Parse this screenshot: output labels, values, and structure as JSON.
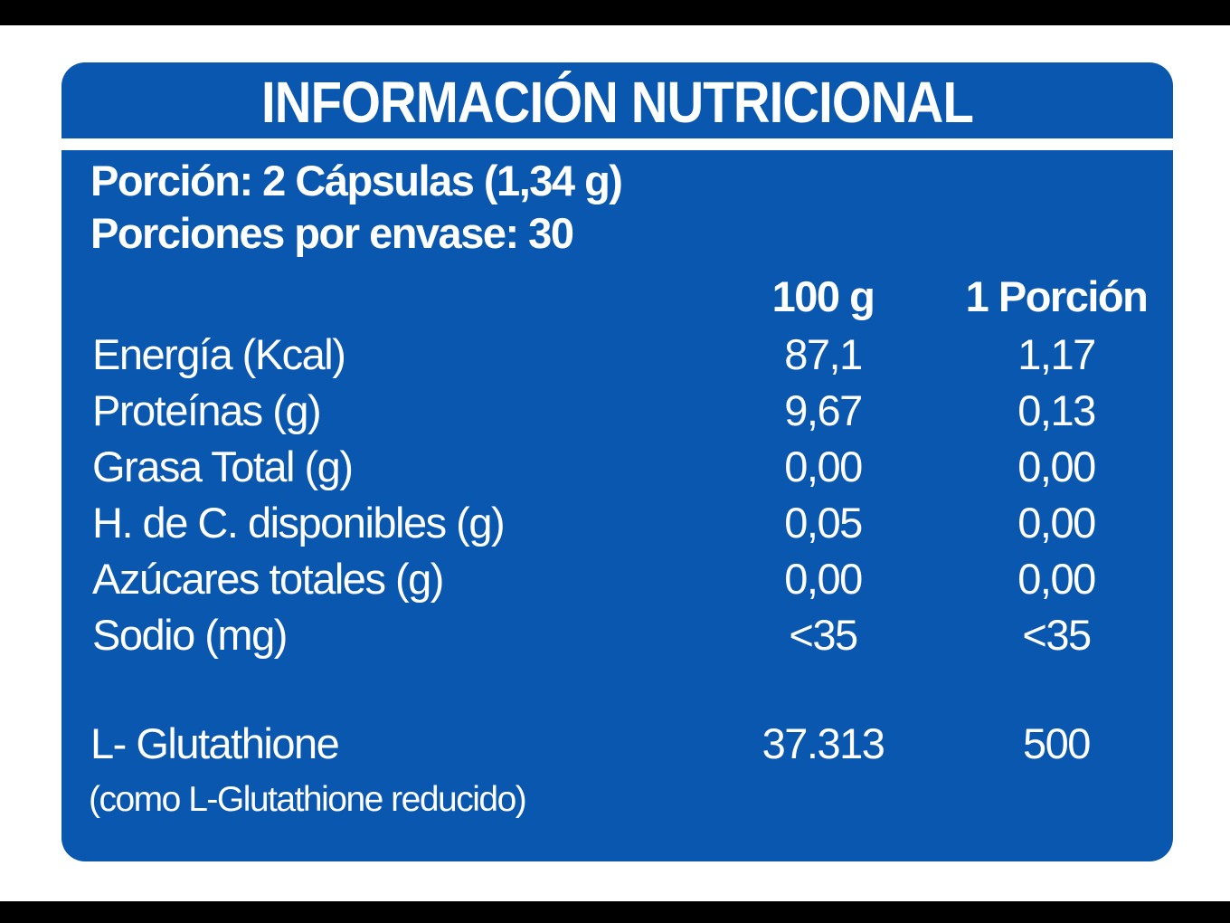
{
  "label": {
    "title": "INFORMACIÓN NUTRICIONAL",
    "serving": {
      "portion_line": "Porción: 2 Cápsulas (1,34 g)",
      "servings_per_container_line": "Porciones por envase: 30"
    },
    "columns": {
      "per_100g": "100 g",
      "per_portion": "1 Porción"
    },
    "rows": [
      {
        "name": "Energía (Kcal)",
        "per100": "87,1",
        "perPortion": "1,17"
      },
      {
        "name": "Proteínas (g)",
        "per100": "9,67",
        "perPortion": "0,13"
      },
      {
        "name": "Grasa Total (g)",
        "per100": "0,00",
        "perPortion": "0,00"
      },
      {
        "name": "H. de C. disponibles (g)",
        "per100": "0,05",
        "perPortion": "0,00"
      },
      {
        "name": "Azúcares totales (g)",
        "per100": "0,00",
        "perPortion": "0,00"
      },
      {
        "name": "Sodio (mg)",
        "per100": "<35",
        "perPortion": "<35"
      }
    ],
    "extra_row": {
      "name": "L- Glutathione",
      "per100": "37.313",
      "perPortion": "500",
      "note": "(como L-Glutathione reducido)"
    },
    "colors": {
      "panel_blue": "#0A57AF",
      "text_white": "#FFFFFF",
      "letterbox_black": "#000000",
      "page_background": "#FFFFFF"
    }
  }
}
